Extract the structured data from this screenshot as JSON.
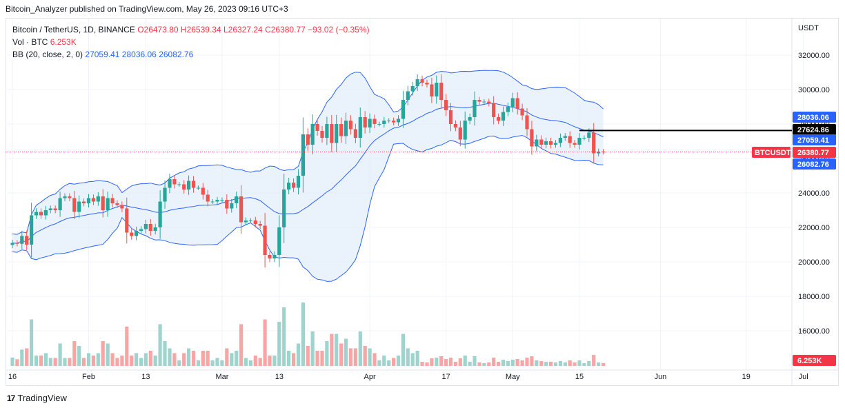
{
  "header": {
    "publisher": "Bitcoin_Analyzer published on TradingView.com, May 26, 2023 09:16 UTC+3"
  },
  "legend": {
    "symbol": "Bitcoin / TetherUS, 1D, BINANCE",
    "open": "O26473.80",
    "high": "H26539.34",
    "low": "L26327.24",
    "close": "C26380.77",
    "change": "−93.02 (−0.35%)",
    "vol_label": "Vol · BTC",
    "vol_value": "6.253K",
    "bb_label": "BB (20, close, 2, 0)",
    "bb_mid": "27059.41",
    "bb_upper": "28036.06",
    "bb_lower": "26082.76"
  },
  "footer": {
    "brand": "TradingView",
    "logo": "17"
  },
  "colors": {
    "up": "#26a69a",
    "down": "#ef5350",
    "vol_up": "#9fd4ce",
    "vol_down": "#f5a6a5",
    "band": "#2962ff",
    "band_fill": "#e3edfa",
    "last_price": "#f23645",
    "resistance": "#000000"
  },
  "chart_data": {
    "type": "candlestick",
    "currency": "USDT",
    "y_ticks": [
      "32000.00",
      "30000.00",
      "28000.00",
      "26000.00",
      "24000.00",
      "22000.00",
      "20000.00",
      "18000.00",
      "16000.00"
    ],
    "ylim": [
      14000,
      33200
    ],
    "x_ticks": [
      {
        "label": "16",
        "date": "2023-01-16"
      },
      {
        "label": "Feb",
        "date": "2023-02-01"
      },
      {
        "label": "13",
        "date": "2023-02-13"
      },
      {
        "label": "Mar",
        "date": "2023-03-01"
      },
      {
        "label": "13",
        "date": "2023-03-13"
      },
      {
        "label": "Apr",
        "date": "2023-04-01"
      },
      {
        "label": "17",
        "date": "2023-04-17"
      },
      {
        "label": "May",
        "date": "2023-05-01"
      },
      {
        "label": "15",
        "date": "2023-05-15"
      },
      {
        "label": "Jun",
        "date": "2023-06-01"
      },
      {
        "label": "19",
        "date": "2023-06-19"
      },
      {
        "label": "Jul",
        "date": "2023-07-01"
      }
    ],
    "x_start": "2023-01-16",
    "closes": [
      21100,
      21050,
      21500,
      21000,
      22700,
      22900,
      22700,
      23000,
      23100,
      23000,
      23700,
      23800,
      23700,
      22900,
      23500,
      23400,
      23700,
      23500,
      23800,
      23000,
      23700,
      23400,
      23300,
      23100,
      21700,
      21500,
      21800,
      21900,
      22200,
      21800,
      22000,
      23500,
      24300,
      24800,
      24500,
      24500,
      24200,
      24700,
      24300,
      24300,
      23900,
      23500,
      23500,
      23600,
      23600,
      23100,
      23400,
      23800,
      22300,
      22400,
      22400,
      22200,
      22100,
      20400,
      20200,
      20400,
      22000,
      24200,
      24600,
      24300,
      25000,
      27400,
      26800,
      28000,
      27600,
      27200,
      28000,
      26900,
      28000,
      27300,
      28200,
      27700,
      27200,
      28400,
      27800,
      28300,
      28000,
      28000,
      28200,
      28200,
      28100,
      28300,
      29400,
      29900,
      30200,
      30600,
      30400,
      30300,
      29600,
      30400,
      29400,
      28800,
      28000,
      27800,
      27100,
      28200,
      28400,
      29400,
      29300,
      29300,
      29200,
      28400,
      28200,
      28700,
      29000,
      29500,
      28900,
      28500,
      27700,
      26700,
      27100,
      26800,
      27000,
      26800,
      26900,
      27200,
      27300,
      26900,
      26800,
      27200,
      27200,
      27500,
      26300,
      26400,
      26380
    ],
    "last_price": 26380.77,
    "price_labels": {
      "upper": "28036.06",
      "resistance": "27624.86",
      "mid": "27059.41",
      "close": "26380.77",
      "lower": "26082.76",
      "volume": "6.253K"
    },
    "symbol_tag": "BTCUSDT",
    "resistance_level": 27624.86,
    "resistance_start": "2023-05-15"
  }
}
